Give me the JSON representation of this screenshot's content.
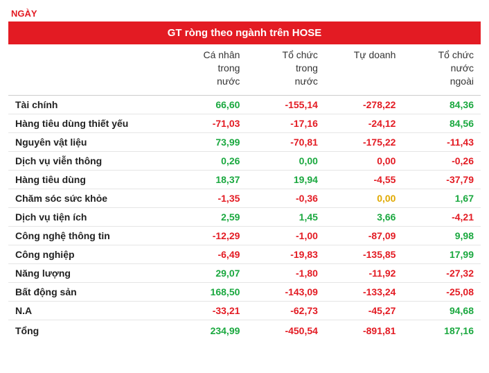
{
  "page_label": "NGÀY",
  "title": "GT ròng theo ngành trên HOSE",
  "colors": {
    "positive": "#1aa83f",
    "negative": "#e31b23",
    "zero": "#e0a900",
    "text": "#222222"
  },
  "columns": [
    "",
    "Cá nhân\ntrong\nnước",
    "Tổ chức\ntrong\nnước",
    "Tự doanh",
    "Tổ chức\nnước\nngoài"
  ],
  "rows": [
    {
      "label": "Tài chính",
      "v": [
        "66,60",
        "-155,14",
        "-278,22",
        "84,36"
      ],
      "s": [
        "p",
        "n",
        "n",
        "p"
      ]
    },
    {
      "label": "Hàng tiêu dùng thiết yếu",
      "v": [
        "-71,03",
        "-17,16",
        "-24,12",
        "84,56"
      ],
      "s": [
        "n",
        "n",
        "n",
        "p"
      ]
    },
    {
      "label": "Nguyên vật liệu",
      "v": [
        "73,99",
        "-70,81",
        "-175,22",
        "-11,43"
      ],
      "s": [
        "p",
        "n",
        "n",
        "n"
      ]
    },
    {
      "label": "Dịch vụ viễn thông",
      "v": [
        "0,26",
        "0,00",
        "0,00",
        "-0,26"
      ],
      "s": [
        "p",
        "p",
        "n",
        "n"
      ]
    },
    {
      "label": "Hàng tiêu dùng",
      "v": [
        "18,37",
        "19,94",
        "-4,55",
        "-37,79"
      ],
      "s": [
        "p",
        "p",
        "n",
        "n"
      ]
    },
    {
      "label": "Chăm sóc sức khỏe",
      "v": [
        "-1,35",
        "-0,36",
        "0,00",
        "1,67"
      ],
      "s": [
        "n",
        "n",
        "z",
        "p"
      ]
    },
    {
      "label": "Dịch vụ tiện ích",
      "v": [
        "2,59",
        "1,45",
        "3,66",
        "-4,21"
      ],
      "s": [
        "p",
        "p",
        "p",
        "n"
      ]
    },
    {
      "label": "Công nghệ thông tin",
      "v": [
        "-12,29",
        "-1,00",
        "-87,09",
        "9,98"
      ],
      "s": [
        "n",
        "n",
        "n",
        "p"
      ]
    },
    {
      "label": "Công nghiệp",
      "v": [
        "-6,49",
        "-19,83",
        "-135,85",
        "17,99"
      ],
      "s": [
        "n",
        "n",
        "n",
        "p"
      ]
    },
    {
      "label": "Năng lượng",
      "v": [
        "29,07",
        "-1,80",
        "-11,92",
        "-27,32"
      ],
      "s": [
        "p",
        "n",
        "n",
        "n"
      ]
    },
    {
      "label": "Bất động sản",
      "v": [
        "168,50",
        "-143,09",
        "-133,24",
        "-25,08"
      ],
      "s": [
        "p",
        "n",
        "n",
        "n"
      ]
    },
    {
      "label": "N.A",
      "v": [
        "-33,21",
        "-62,73",
        "-45,27",
        "94,68"
      ],
      "s": [
        "n",
        "n",
        "n",
        "p"
      ]
    }
  ],
  "total": {
    "label": "Tổng",
    "v": [
      "234,99",
      "-450,54",
      "-891,81",
      "187,16"
    ],
    "s": [
      "p",
      "n",
      "n",
      "p"
    ]
  }
}
